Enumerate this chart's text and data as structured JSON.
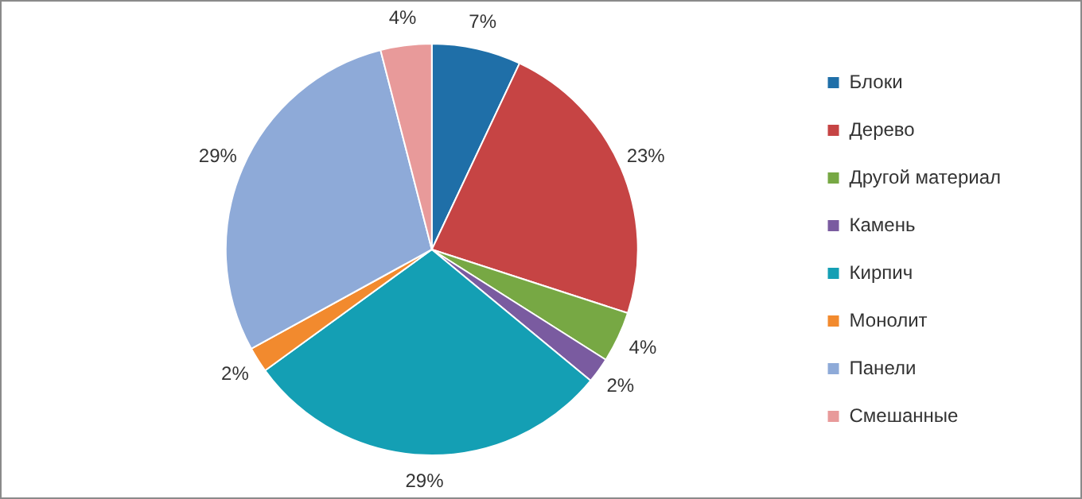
{
  "chart_data": {
    "type": "pie",
    "categories": [
      "Блоки",
      "Дерево",
      "Другой материал",
      "Камень",
      "Кирпич",
      "Монолит",
      "Панели",
      "Смешанные"
    ],
    "values": [
      7,
      23,
      4,
      2,
      29,
      2,
      29,
      4
    ],
    "colors": [
      "#1f6fa8",
      "#c64444",
      "#77a844",
      "#7a5ba0",
      "#149fb4",
      "#f28a2e",
      "#8eaad8",
      "#e89a9a"
    ],
    "value_labels": [
      "7%",
      "23%",
      "4%",
      "2%",
      "29%",
      "2%",
      "29%",
      "4%"
    ],
    "legend": "right"
  }
}
